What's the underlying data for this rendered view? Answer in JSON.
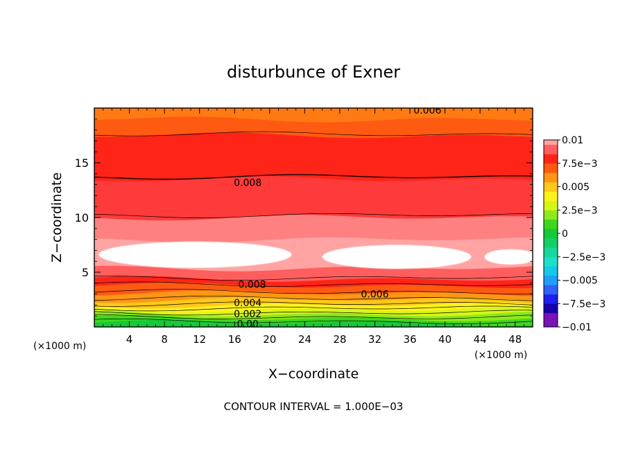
{
  "chart_data": {
    "type": "heatmap",
    "title": "disturbunce of Exner",
    "xlabel": "X−coordinate",
    "ylabel": "Z−coordinate",
    "x_unit_left": "(×1000 m)",
    "x_unit_right": "(×1000 m)",
    "footer": "CONTOUR INTERVAL = 1.000E−03",
    "xlim": [
      0,
      50
    ],
    "ylim": [
      0,
      20
    ],
    "x_ticks": [
      {
        "value": 4,
        "label": "4"
      },
      {
        "value": 8,
        "label": "8"
      },
      {
        "value": 12,
        "label": "12"
      },
      {
        "value": 16,
        "label": "16"
      },
      {
        "value": 20,
        "label": "20"
      },
      {
        "value": 24,
        "label": "24"
      },
      {
        "value": 28,
        "label": "28"
      },
      {
        "value": 32,
        "label": "32"
      },
      {
        "value": 36,
        "label": "36"
      },
      {
        "value": 40,
        "label": "40"
      },
      {
        "value": 44,
        "label": "44"
      },
      {
        "value": 48,
        "label": "48"
      }
    ],
    "y_ticks": [
      {
        "value": 5,
        "label": "5"
      },
      {
        "value": 10,
        "label": "10"
      },
      {
        "value": 15,
        "label": "15"
      }
    ],
    "contour_interval": 0.001,
    "colorbar": {
      "min": -0.01,
      "max": 0.01,
      "levels": [
        {
          "from": -0.01,
          "to": -0.0085,
          "color": "#7a12b8"
        },
        {
          "from": -0.0085,
          "to": -0.0075,
          "color": "#1a00a8"
        },
        {
          "from": -0.0075,
          "to": -0.0065,
          "color": "#1f1ff0"
        },
        {
          "from": -0.0065,
          "to": -0.0055,
          "color": "#2f62f5"
        },
        {
          "from": -0.0055,
          "to": -0.0045,
          "color": "#1e9ef6"
        },
        {
          "from": -0.0045,
          "to": -0.0035,
          "color": "#16c8e6"
        },
        {
          "from": -0.0035,
          "to": -0.0025,
          "color": "#1ee0c6"
        },
        {
          "from": -0.0025,
          "to": -0.0015,
          "color": "#19d79c"
        },
        {
          "from": -0.0015,
          "to": -0.0005,
          "color": "#14cf64"
        },
        {
          "from": -0.0005,
          "to": 0.0005,
          "color": "#16c83a"
        },
        {
          "from": 0.0005,
          "to": 0.0015,
          "color": "#3fd61f"
        },
        {
          "from": 0.0015,
          "to": 0.0025,
          "color": "#8ee81a"
        },
        {
          "from": 0.0025,
          "to": 0.0035,
          "color": "#d8f51a"
        },
        {
          "from": 0.0035,
          "to": 0.0045,
          "color": "#fff21c"
        },
        {
          "from": 0.0045,
          "to": 0.0055,
          "color": "#ffc81a"
        },
        {
          "from": 0.0055,
          "to": 0.0065,
          "color": "#ff9614"
        },
        {
          "from": 0.0065,
          "to": 0.0075,
          "color": "#ff5a12"
        },
        {
          "from": 0.0075,
          "to": 0.0085,
          "color": "#ff2418"
        },
        {
          "from": 0.0085,
          "to": 0.0095,
          "color": "#ff5e5e"
        },
        {
          "from": 0.0095,
          "to": 0.01,
          "color": "#ffa3a3"
        }
      ],
      "tick_labels": [
        {
          "value": 0.01,
          "label": "0.01"
        },
        {
          "value": 0.0075,
          "label": "7.5e−3"
        },
        {
          "value": 0.005,
          "label": "0.005"
        },
        {
          "value": 0.0025,
          "label": "2.5e−3"
        },
        {
          "value": 0,
          "label": "0"
        },
        {
          "value": -0.0025,
          "label": "−2.5e−3"
        },
        {
          "value": -0.005,
          "label": "−0.005"
        },
        {
          "value": -0.0075,
          "label": "−7.5e−3"
        },
        {
          "value": -0.01,
          "label": "−0.01"
        }
      ]
    },
    "field_bands": [
      {
        "z_bottom": 0.0,
        "z_top": 0.4,
        "value": 0.0,
        "color": "#16c83a"
      },
      {
        "z_bottom": 0.4,
        "z_top": 0.8,
        "value": 0.001,
        "color": "#3fd61f"
      },
      {
        "z_bottom": 0.8,
        "z_top": 1.2,
        "value": 0.002,
        "color": "#8ee81a"
      },
      {
        "z_bottom": 1.2,
        "z_top": 1.6,
        "value": 0.003,
        "color": "#d8f51a"
      },
      {
        "z_bottom": 1.6,
        "z_top": 2.0,
        "value": 0.004,
        "color": "#fff21c"
      },
      {
        "z_bottom": 2.0,
        "z_top": 2.5,
        "value": 0.005,
        "color": "#ffc81a"
      },
      {
        "z_bottom": 2.5,
        "z_top": 3.1,
        "value": 0.006,
        "color": "#ff9614"
      },
      {
        "z_bottom": 3.1,
        "z_top": 3.8,
        "value": 0.007,
        "color": "#ff5a12"
      },
      {
        "z_bottom": 3.8,
        "z_top": 4.4,
        "value": 0.008,
        "color": "#ff2418"
      },
      {
        "z_bottom": 4.4,
        "z_top": 5.4,
        "value": 0.009,
        "color": "#ff5e5e"
      },
      {
        "z_bottom": 5.4,
        "z_top": 8.0,
        "value": 0.0095,
        "color": "#ffa3a3"
      },
      {
        "z_bottom": 8.0,
        "z_top": 10.0,
        "value": 0.009,
        "color": "#ff8080"
      },
      {
        "z_bottom": 10.0,
        "z_top": 13.5,
        "value": 0.0085,
        "color": "#ff3a3a"
      },
      {
        "z_bottom": 13.5,
        "z_top": 17.5,
        "value": 0.0078,
        "color": "#ff2418"
      },
      {
        "z_bottom": 17.5,
        "z_top": 19.0,
        "value": 0.007,
        "color": "#ff5a12"
      },
      {
        "z_bottom": 19.0,
        "z_top": 20.0,
        "value": 0.0062,
        "color": "#ff7a12"
      }
    ],
    "white_regions": [
      {
        "x_center": 11.5,
        "z_center": 6.6,
        "x_halfwidth": 11.0,
        "z_halfheight": 1.2
      },
      {
        "x_center": 34.5,
        "z_center": 6.4,
        "x_halfwidth": 8.5,
        "z_halfheight": 1.1
      },
      {
        "x_center": 47.5,
        "z_center": 6.4,
        "x_halfwidth": 3.0,
        "z_halfheight": 0.7
      }
    ],
    "contour_lines": [
      {
        "z": 0.5,
        "weight": "thin"
      },
      {
        "z": 0.9,
        "weight": "thin"
      },
      {
        "z": 1.3,
        "weight": "thin"
      },
      {
        "z": 1.7,
        "weight": "thin"
      },
      {
        "z": 2.1,
        "weight": "thin"
      },
      {
        "z": 2.6,
        "weight": "thin"
      },
      {
        "z": 3.2,
        "weight": "thin"
      },
      {
        "z": 3.9,
        "weight": "thin"
      },
      {
        "z": 4.5,
        "weight": "thin"
      },
      {
        "z": 10.2,
        "weight": "thin"
      },
      {
        "z": 13.7,
        "weight": "thick"
      },
      {
        "z": 17.6,
        "weight": "thin"
      }
    ],
    "contour_labels": [
      {
        "x": 17.5,
        "z": 0.3,
        "text": "0.00"
      },
      {
        "x": 17.5,
        "z": 1.2,
        "text": "0.002"
      },
      {
        "x": 17.5,
        "z": 2.2,
        "text": "0.004"
      },
      {
        "x": 18.0,
        "z": 3.9,
        "text": "0.008"
      },
      {
        "x": 32.0,
        "z": 3.0,
        "text": "0.006"
      },
      {
        "x": 17.5,
        "z": 13.2,
        "text": "0.008"
      },
      {
        "x": 38.0,
        "z": 19.8,
        "text": "0.006"
      }
    ]
  }
}
